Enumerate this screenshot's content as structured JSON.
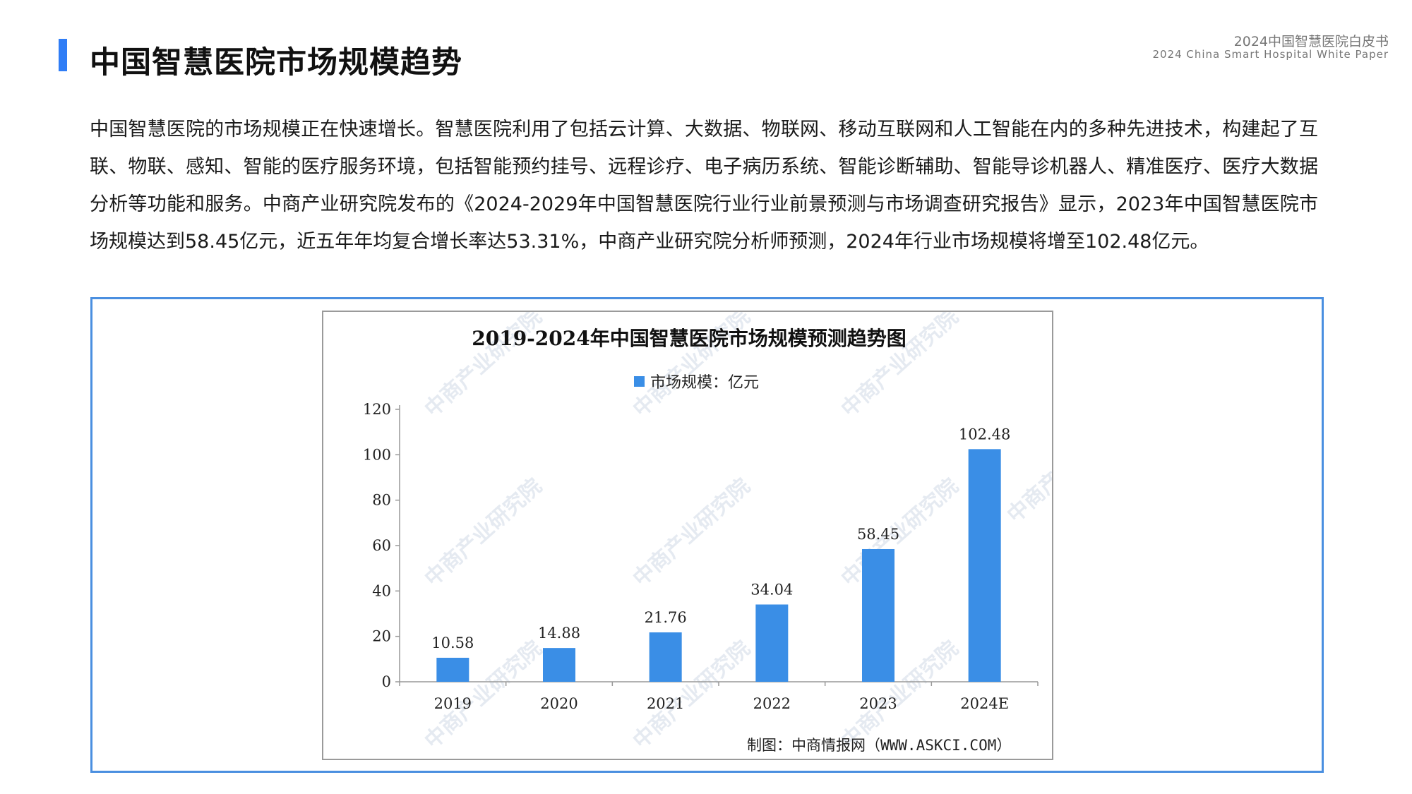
{
  "header": {
    "title": "中国智慧医院市场规模趋势",
    "brand_cn": "2024中国智慧医院白皮书",
    "brand_en": "2024 China Smart Hospital White Paper"
  },
  "intro": {
    "paragraph": "中国智慧医院的市场规模正在快速增长。智慧医院利用了包括云计算、大数据、物联网、移动互联网和人工智能在内的多种先进技术，构建起了互联、物联、感知、智能的医疗服务环境，包括智能预约挂号、远程诊疗、电子病历系统、智能诊断辅助、智能导诊机器人、精准医疗、医疗大数据分析等功能和服务。中商产业研究院发布的《2024-2029年中国智慧医院行业行业前景预测与市场调查研究报告》显示，2023年中国智慧医院市场规模达到58.45亿元，近五年年均复合增长率达53.31%，中商产业研究院分析师预测，2024年行业市场规模将增至102.48亿元。"
  },
  "chart_data": {
    "type": "bar",
    "title": "2019-2024年中国智慧医院市场规模预测趋势图",
    "categories": [
      "2019",
      "2020",
      "2021",
      "2022",
      "2023",
      "2024E"
    ],
    "series": [
      {
        "name": "市场规模：亿元",
        "values": [
          10.58,
          14.88,
          21.76,
          34.04,
          58.45,
          102.48
        ]
      }
    ],
    "data_labels": [
      "10.58",
      "14.88",
      "21.76",
      "34.04",
      "58.45",
      "102.48"
    ],
    "yticks": [
      "0",
      "20",
      "40",
      "60",
      "80",
      "100",
      "120"
    ],
    "ylim": [
      0,
      120
    ],
    "xlabel": "",
    "ylabel": "",
    "grid": false,
    "legend": "top-center",
    "bar_color": "#3a8ee6",
    "source": "制图：中商情报网（WWW.ASKCI.COM）",
    "watermark": "中商产业研究院"
  },
  "colors": {
    "accent": "#2f7df6",
    "frame": "#4a8fe0",
    "bar": "#3a8ee6"
  }
}
